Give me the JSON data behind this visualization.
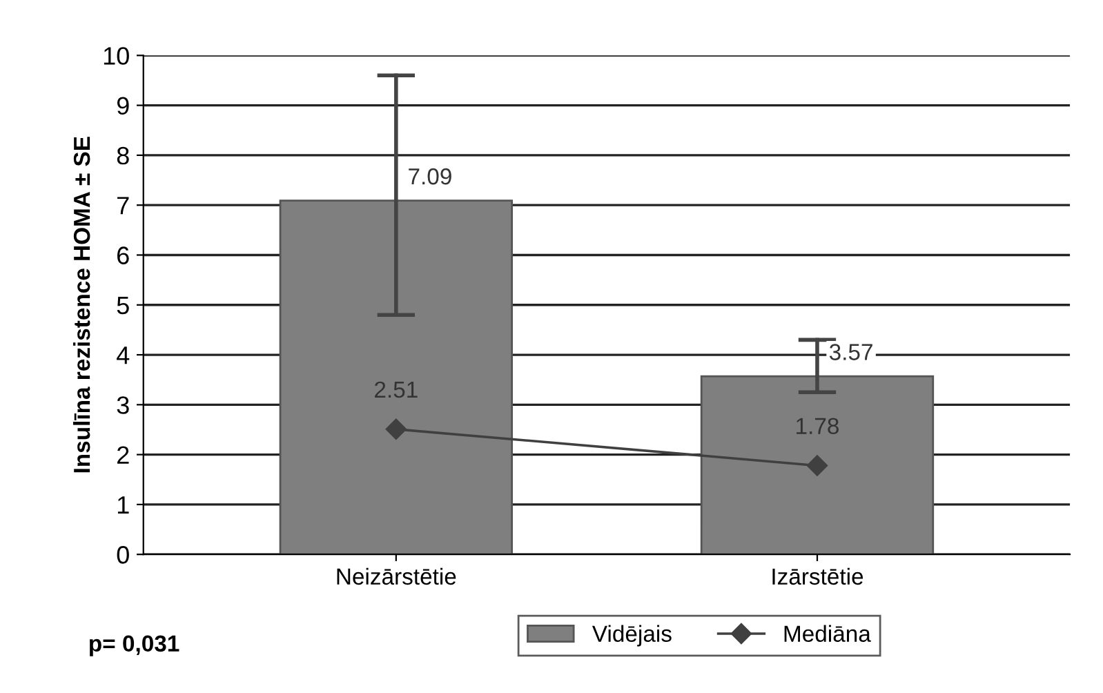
{
  "chart_data": {
    "type": "bar",
    "ylabel": "Insulīna rezistence HOMA ± SE",
    "categories": [
      "Neizārstētie",
      "Izārstētie"
    ],
    "series": [
      {
        "name": "Vidējais",
        "color": "#7f7f7f",
        "values": [
          7.09,
          3.57
        ],
        "errors": [
          [
            4.8,
            9.6
          ],
          [
            3.25,
            4.3
          ]
        ]
      },
      {
        "name": "Mediāna",
        "type": "line",
        "color": "#404040",
        "marker": "diamond",
        "values": [
          2.51,
          1.78
        ]
      }
    ],
    "ylim": [
      0,
      10
    ],
    "yticks": [
      0,
      1,
      2,
      3,
      4,
      5,
      6,
      7,
      8,
      9,
      10
    ],
    "grid": "y",
    "legend": "bottom",
    "data_labels": true,
    "annotations": [
      "p= 0,031"
    ]
  }
}
